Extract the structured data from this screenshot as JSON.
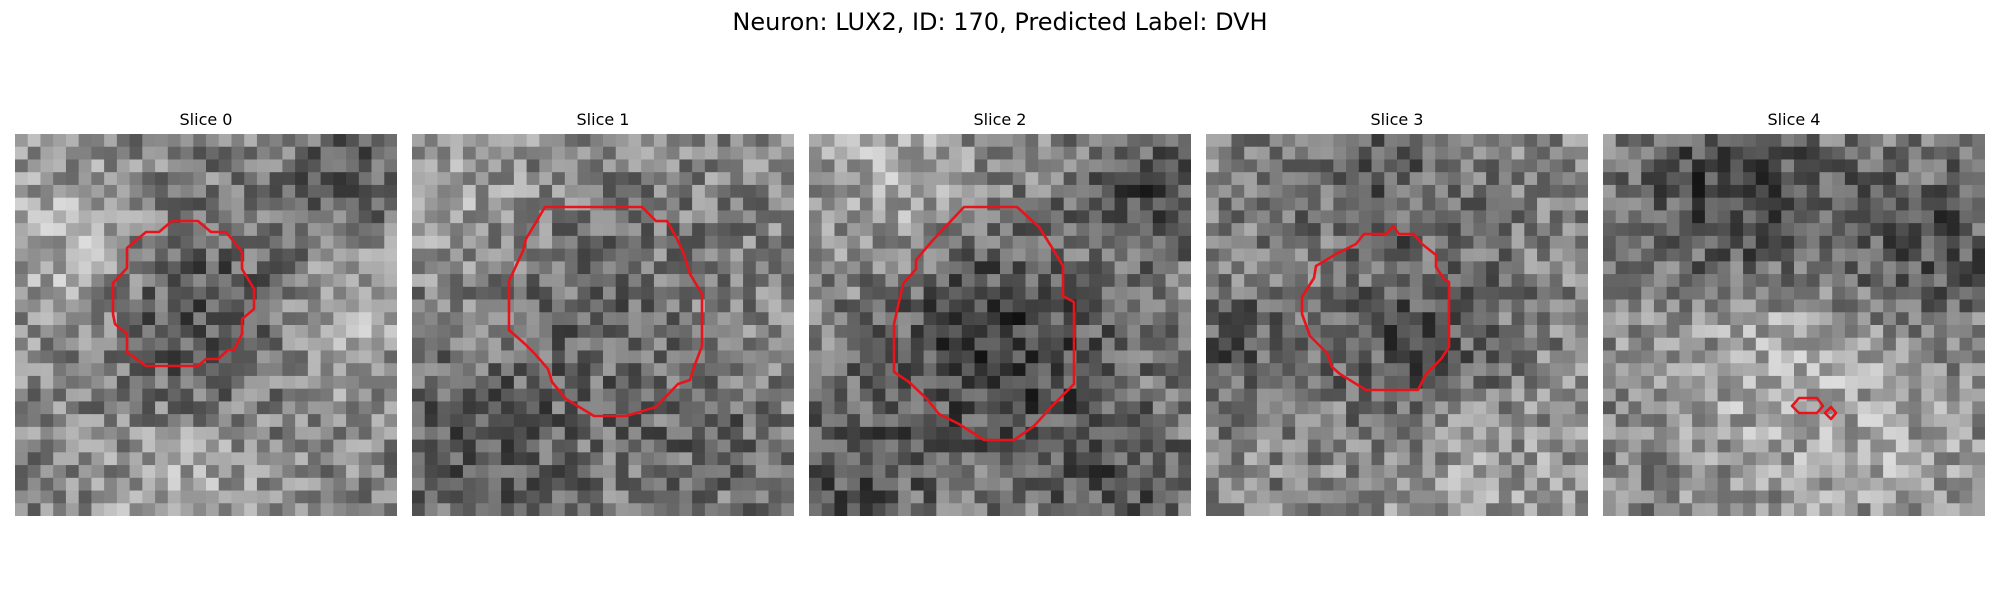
{
  "figure": {
    "title": "Neuron: LUX2, ID: 170, Predicted Label: DVH",
    "contour_color": "#e8141c",
    "colormap": "grayscale"
  },
  "panels": [
    {
      "title": "Slice 0"
    },
    {
      "title": "Slice 1"
    },
    {
      "title": "Slice 2"
    },
    {
      "title": "Slice 3"
    },
    {
      "title": "Slice 4"
    }
  ]
}
